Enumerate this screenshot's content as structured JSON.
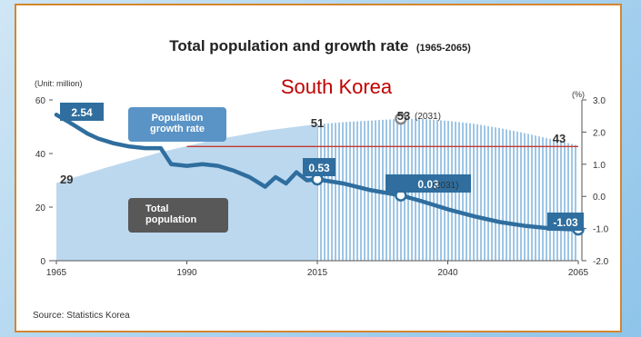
{
  "chart_data": {
    "type": "area",
    "title": "Total population and growth rate",
    "title_range": "(1965-2065)",
    "subtitle": "South Korea",
    "left_axis_unit": "(Unit: million)",
    "right_axis_unit": "(%)",
    "source": "Source: Statistics Korea",
    "x_ticks": [
      "1965",
      "1990",
      "2015",
      "2040",
      "2065"
    ],
    "xlim": [
      1965,
      2065
    ],
    "left_ticks": [
      "0",
      "20",
      "40",
      "60"
    ],
    "left_ylim": [
      0,
      60
    ],
    "right_ticks": [
      "-2.0",
      "-1.0",
      "0.0",
      "1.0",
      "2.0",
      "3.0"
    ],
    "right_ylim": [
      -2,
      3
    ],
    "legend": [
      {
        "name": "Population growth rate",
        "lines": [
          "Population",
          "growth rate"
        ]
      },
      {
        "name": "Total population",
        "lines": [
          "Total",
          "population"
        ]
      }
    ],
    "series": [
      {
        "name": "Total population",
        "axis": "left",
        "x": [
          1965,
          1975,
          1985,
          1995,
          2005,
          2015,
          2020,
          2025,
          2031,
          2035,
          2040,
          2045,
          2050,
          2055,
          2060,
          2065
        ],
        "values": [
          29,
          35,
          40.5,
          45,
          48.5,
          51,
          51.7,
          52.3,
          53,
          52.9,
          52.2,
          51.1,
          49.5,
          47.5,
          45.3,
          43
        ]
      },
      {
        "name": "Population growth rate",
        "axis": "right",
        "x": [
          1965,
          1967,
          1969,
          1971,
          1973,
          1976,
          1979,
          1982,
          1985,
          1987,
          1990,
          1993,
          1996,
          1999,
          2002,
          2005,
          2007,
          2009,
          2011,
          2013,
          2015,
          2020,
          2025,
          2031,
          2035,
          2040,
          2045,
          2050,
          2055,
          2060,
          2065
        ],
        "values": [
          2.54,
          2.35,
          2.15,
          1.95,
          1.8,
          1.65,
          1.55,
          1.5,
          1.5,
          1.0,
          0.95,
          1.0,
          0.95,
          0.8,
          0.6,
          0.3,
          0.6,
          0.4,
          0.75,
          0.5,
          0.53,
          0.4,
          0.2,
          0.03,
          -0.15,
          -0.4,
          -0.62,
          -0.8,
          -0.92,
          -1.0,
          -1.03
        ]
      }
    ],
    "annotations": [
      {
        "series": "Total population",
        "year": 1965,
        "label": "29"
      },
      {
        "series": "Total population",
        "year": 2015,
        "label": "51"
      },
      {
        "series": "Total population",
        "year": 2031,
        "label": "53",
        "note": "(2031)"
      },
      {
        "series": "Total population",
        "year": 2065,
        "label": "43"
      },
      {
        "series": "Population growth rate",
        "year": 1965,
        "label": "2.54"
      },
      {
        "series": "Population growth rate",
        "year": 2015,
        "label": "0.53"
      },
      {
        "series": "Population growth rate",
        "year": 2031,
        "label": "0.03",
        "note": "(2031)"
      },
      {
        "series": "Population growth rate",
        "year": 2065,
        "label": "-1.03"
      }
    ],
    "reference_line": {
      "axis": "right",
      "value": 1.55,
      "from_year": 1990,
      "to_year": 2065,
      "color": "#c0392b"
    },
    "colors": {
      "area_past": "#bcd8ef",
      "area_projection": "#9fc6e6",
      "line": "#2f6e9e",
      "badge": "#2f6e9e",
      "badge_dark": "#585858",
      "frame_border": "#d4862e",
      "subtitle": "#c00000"
    }
  }
}
